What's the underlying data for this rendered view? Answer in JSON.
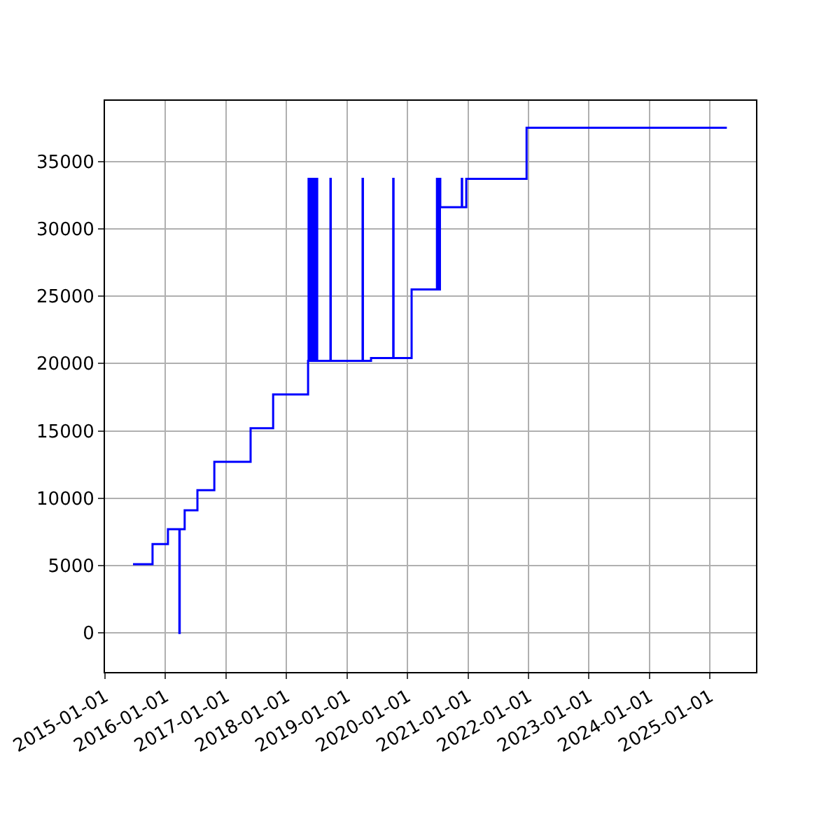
{
  "chart_data": {
    "type": "step",
    "x": [
      "2015-06-19",
      "2015-10-15",
      "2016-01-16",
      "2016-03-25",
      "2016-03-27",
      "2016-04-26",
      "2016-07-12",
      "2016-10-22",
      "2017-05-29",
      "2017-10-12",
      "2018-05-11",
      "2018-05-14",
      "2018-05-16",
      "2018-05-22",
      "2018-05-25",
      "2018-06-01",
      "2018-06-04",
      "2018-06-12",
      "2018-06-15",
      "2018-06-22",
      "2018-06-25",
      "2018-07-02",
      "2018-07-05",
      "2018-09-23",
      "2018-09-25",
      "2019-04-05",
      "2019-04-07",
      "2019-05-26",
      "2019-10-07",
      "2019-10-09",
      "2020-01-26",
      "2020-06-27",
      "2020-06-29",
      "2020-07-03",
      "2020-07-05",
      "2020-07-09",
      "2020-07-11",
      "2020-07-15",
      "2020-07-17",
      "2020-11-24",
      "2020-11-26",
      "2020-12-21",
      "2021-12-20",
      "2025-04-12"
    ],
    "series": [
      {
        "color": "#0000ff",
        "values": [
          5100,
          6600,
          7700,
          0,
          7700,
          9100,
          10600,
          12700,
          15200,
          17700,
          20200,
          33700,
          20200,
          33700,
          20200,
          33700,
          20200,
          33700,
          20200,
          33700,
          20200,
          33700,
          20200,
          33700,
          20200,
          33700,
          20200,
          20400,
          33700,
          20400,
          25500,
          33700,
          25500,
          33700,
          25500,
          33700,
          25500,
          33700,
          31600,
          33700,
          31600,
          33700,
          37500,
          37500
        ]
      }
    ],
    "xlim": [
      "2015-01-01",
      "2025-10-05"
    ],
    "xticks": [
      "2015-01-01",
      "2016-01-01",
      "2017-01-01",
      "2018-01-01",
      "2019-01-01",
      "2020-01-01",
      "2021-01-01",
      "2022-01-01",
      "2023-01-01",
      "2024-01-01",
      "2025-01-01"
    ],
    "ylim": [
      -2900,
      39500
    ],
    "yticks": [
      0,
      5000,
      10000,
      15000,
      20000,
      25000,
      30000,
      35000
    ],
    "grid": true
  }
}
